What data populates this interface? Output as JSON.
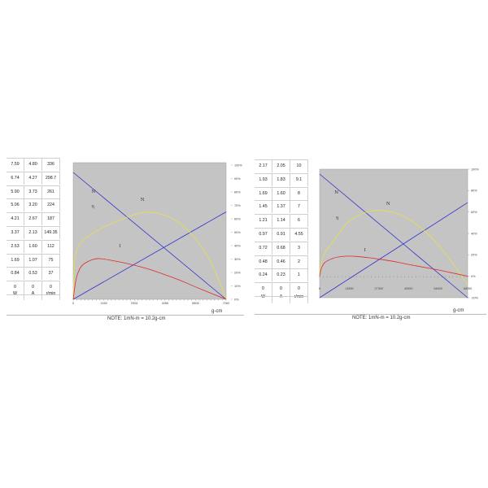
{
  "panels": [
    {
      "id": "left",
      "table": {
        "headers": [
          "W",
          "A",
          "r/min"
        ],
        "rows": [
          [
            "7.59",
            "4.80",
            "336"
          ],
          [
            "6.74",
            "4.27",
            "298.7"
          ],
          [
            "5.90",
            "3.73",
            "261"
          ],
          [
            "5.06",
            "3.20",
            "224"
          ],
          [
            "4.21",
            "2.67",
            "187"
          ],
          [
            "3.37",
            "2.13",
            "149.35"
          ],
          [
            "2.53",
            "1.60",
            "112"
          ],
          [
            "1.69",
            "1.07",
            "75"
          ],
          [
            "0.84",
            "0.53",
            "37"
          ],
          [
            "0",
            "0",
            "0"
          ]
        ]
      },
      "x_ticks": [
        "0",
        "1452",
        "2904",
        "4356",
        "5808",
        "7260"
      ],
      "right_ticks": [
        "100%",
        "90%",
        "80%",
        "70%",
        "60%",
        "50%",
        "40%",
        "30%",
        "20%",
        "10%",
        "0%"
      ],
      "x_unit": "g-cm",
      "curve_labels": {
        "speed": "N",
        "efficiency": "η",
        "power": "N",
        "current": "I"
      },
      "note": "NOTE: 1mN-m = 10.2g-cm"
    },
    {
      "id": "right",
      "table": {
        "headers": [
          "W",
          "A",
          "r/min"
        ],
        "rows": [
          [
            "2.17",
            "2.05",
            "10"
          ],
          [
            "1.93",
            "1.83",
            "9.1"
          ],
          [
            "1.69",
            "1.60",
            "8"
          ],
          [
            "1.45",
            "1.37",
            "7"
          ],
          [
            "1.21",
            "1.14",
            "6"
          ],
          [
            "0.97",
            "0.91",
            "4.55"
          ],
          [
            "0.72",
            "0.68",
            "3"
          ],
          [
            "0.48",
            "0.46",
            "2"
          ],
          [
            "0.24",
            "0.23",
            "1"
          ],
          [
            "0",
            "0",
            "0"
          ]
        ]
      },
      "x_ticks": [
        "0",
        "13650",
        "27300",
        "40950",
        "54600",
        "68250"
      ],
      "right_ticks": [
        "100%",
        "80%",
        "60%",
        "40%",
        "20%",
        "0%",
        "-20%"
      ],
      "x_unit": "g-cm",
      "curve_labels": {
        "speed": "N",
        "efficiency": "η",
        "power": "N",
        "current": "I"
      },
      "note": "NOTE: 1mN-m = 10.2g-cm"
    }
  ],
  "chart_data": [
    {
      "type": "line",
      "xlabel": "g-cm",
      "xlim": [
        0,
        7260
      ],
      "y2lim": [
        0,
        100
      ],
      "background": "#c4c4c4",
      "series": [
        {
          "key": "speed",
          "color": "#3333cc",
          "x": [
            0,
            7260
          ],
          "y": [
            336,
            0
          ]
        },
        {
          "key": "output",
          "color": "#3333cc",
          "x": [
            0,
            7260
          ],
          "y": [
            0,
            7.59
          ]
        },
        {
          "key": "efficiency",
          "color": "#e8e04a",
          "x": [
            0,
            40,
            100,
            200,
            400,
            726,
            1089,
            1452,
            2178,
            2904,
            3267,
            3630,
            4356,
            5082,
            5808,
            6534,
            6897,
            7260
          ],
          "y": [
            0,
            25,
            33,
            38,
            43,
            46,
            50,
            53,
            58,
            62,
            63.5,
            64,
            62,
            56,
            45,
            28,
            15,
            0
          ]
        },
        {
          "key": "current",
          "color": "#dd2a2a",
          "x": [
            0,
            100,
            200,
            400,
            726,
            1089,
            1452,
            2178,
            2904,
            3630,
            4356,
            5082,
            5808,
            6534,
            7260
          ],
          "y": [
            0,
            12,
            19,
            25,
            28,
            30,
            29.5,
            27.5,
            25,
            22,
            18,
            14,
            9,
            4.5,
            0
          ]
        }
      ]
    },
    {
      "type": "line",
      "xlabel": "g-cm",
      "xlim": [
        0,
        68250
      ],
      "y2lim": [
        -20,
        100
      ],
      "background": "#c4c4c4",
      "series": [
        {
          "key": "speed",
          "color": "#3333cc",
          "x": [
            0,
            68250
          ],
          "y": [
            10,
            0
          ]
        },
        {
          "key": "output",
          "color": "#3333cc",
          "x": [
            0,
            68250
          ],
          "y": [
            0,
            2.17
          ]
        },
        {
          "key": "efficiency",
          "color": "#e8e04a",
          "x": [
            0,
            500,
            1500,
            3000,
            6825,
            10238,
            13650,
            20475,
            27300,
            34125,
            40950,
            47775,
            54600,
            61425,
            68250
          ],
          "y": [
            0,
            10,
            18,
            24,
            34,
            44,
            52,
            60,
            62,
            60,
            54,
            44,
            30,
            12,
            -8
          ]
        },
        {
          "key": "current",
          "color": "#dd2a2a",
          "x": [
            0,
            500,
            1500,
            3000,
            6825,
            10238,
            13650,
            20475,
            27300,
            34125,
            40950,
            47775,
            54600,
            61425,
            68250
          ],
          "y": [
            0,
            6,
            11,
            14,
            17.5,
            18.5,
            19,
            18,
            16,
            14,
            11,
            8.5,
            6,
            3,
            0
          ]
        }
      ]
    }
  ]
}
